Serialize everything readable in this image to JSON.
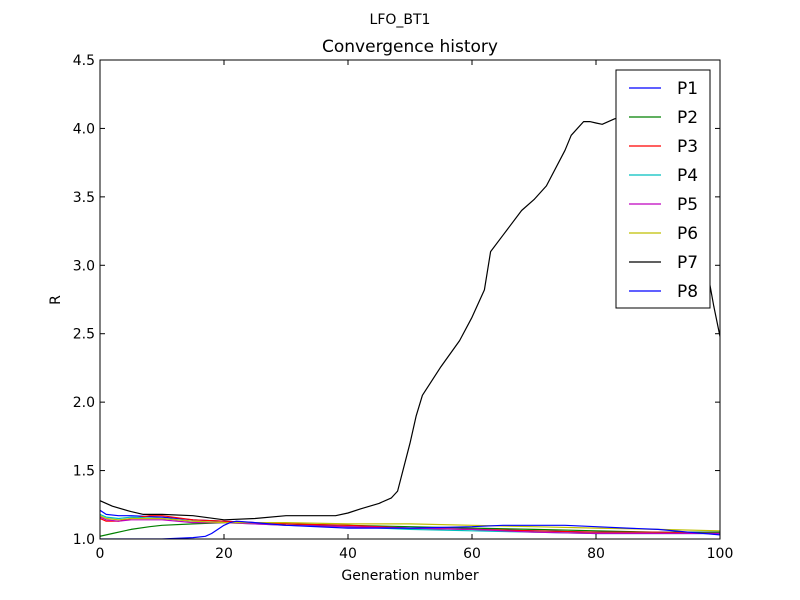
{
  "chart_data": {
    "type": "line",
    "suptitle": "LFO_BT1",
    "title": "Convergence history",
    "xlabel": "Generation number",
    "ylabel": "R",
    "xlim": [
      0,
      100
    ],
    "ylim": [
      1.0,
      4.5
    ],
    "xticks": [
      0,
      20,
      40,
      60,
      80,
      100
    ],
    "yticks": [
      1.0,
      1.5,
      2.0,
      2.5,
      3.0,
      3.5,
      4.0,
      4.5
    ],
    "xtick_labels": [
      "0",
      "20",
      "40",
      "60",
      "80",
      "100"
    ],
    "ytick_labels": [
      "1.0",
      "1.5",
      "2.0",
      "2.5",
      "3.0",
      "3.5",
      "4.0",
      "4.5"
    ],
    "grid": false,
    "legend_position": "top-right",
    "series": [
      {
        "name": "P1",
        "color": "#0000ff",
        "x": [
          0,
          1,
          3,
          5,
          10,
          15,
          20,
          25,
          30,
          40,
          50,
          60,
          70,
          80,
          90,
          100
        ],
        "y": [
          1.21,
          1.18,
          1.17,
          1.17,
          1.16,
          1.14,
          1.13,
          1.12,
          1.11,
          1.09,
          1.08,
          1.07,
          1.06,
          1.05,
          1.05,
          1.05
        ]
      },
      {
        "name": "P2",
        "color": "#008000",
        "x": [
          0,
          2,
          5,
          8,
          10,
          15,
          20,
          25,
          30,
          40,
          50,
          60,
          70,
          80,
          90,
          100
        ],
        "y": [
          1.02,
          1.04,
          1.07,
          1.09,
          1.1,
          1.11,
          1.12,
          1.12,
          1.11,
          1.1,
          1.09,
          1.08,
          1.07,
          1.06,
          1.05,
          1.05
        ]
      },
      {
        "name": "P3",
        "color": "#ff0000",
        "x": [
          0,
          1,
          3,
          5,
          8,
          10,
          15,
          20,
          25,
          30,
          40,
          50,
          60,
          70,
          80,
          90,
          100
        ],
        "y": [
          1.15,
          1.13,
          1.13,
          1.15,
          1.17,
          1.17,
          1.14,
          1.13,
          1.12,
          1.11,
          1.1,
          1.08,
          1.07,
          1.06,
          1.05,
          1.05,
          1.04
        ]
      },
      {
        "name": "P4",
        "color": "#00bfbf",
        "x": [
          0,
          1,
          3,
          5,
          10,
          15,
          20,
          25,
          30,
          40,
          50,
          60,
          70,
          80,
          90,
          100
        ],
        "y": [
          1.18,
          1.16,
          1.15,
          1.16,
          1.15,
          1.13,
          1.12,
          1.11,
          1.1,
          1.09,
          1.07,
          1.06,
          1.05,
          1.04,
          1.04,
          1.04
        ]
      },
      {
        "name": "P5",
        "color": "#bf00bf",
        "x": [
          0,
          1,
          3,
          5,
          10,
          15,
          20,
          25,
          30,
          40,
          50,
          60,
          70,
          80,
          90,
          100
        ],
        "y": [
          1.16,
          1.14,
          1.13,
          1.14,
          1.14,
          1.12,
          1.12,
          1.11,
          1.1,
          1.09,
          1.08,
          1.07,
          1.05,
          1.04,
          1.04,
          1.04
        ]
      },
      {
        "name": "P6",
        "color": "#bfbf00",
        "x": [
          0,
          1,
          3,
          5,
          10,
          15,
          20,
          25,
          30,
          40,
          50,
          60,
          70,
          80,
          90,
          100
        ],
        "y": [
          1.17,
          1.15,
          1.14,
          1.15,
          1.15,
          1.13,
          1.12,
          1.12,
          1.12,
          1.11,
          1.11,
          1.1,
          1.09,
          1.08,
          1.07,
          1.06
        ]
      },
      {
        "name": "P7",
        "color": "#000000",
        "x": [
          0,
          2,
          5,
          7,
          10,
          15,
          20,
          25,
          30,
          35,
          38,
          40,
          42,
          45,
          47,
          48,
          50,
          51,
          52,
          55,
          58,
          60,
          62,
          63,
          65,
          68,
          70,
          72,
          75,
          76,
          78,
          79,
          80,
          81,
          82,
          83,
          85,
          90,
          95,
          97,
          99,
          100
        ],
        "y": [
          1.28,
          1.24,
          1.2,
          1.18,
          1.18,
          1.17,
          1.14,
          1.15,
          1.17,
          1.17,
          1.17,
          1.19,
          1.22,
          1.26,
          1.3,
          1.35,
          1.7,
          1.9,
          2.05,
          2.26,
          2.45,
          2.62,
          2.82,
          3.1,
          3.22,
          3.4,
          3.48,
          3.58,
          3.84,
          3.95,
          4.05,
          4.05,
          4.04,
          4.03,
          4.05,
          4.07,
          4.09,
          4.1,
          4.05,
          3.2,
          2.7,
          2.48
        ]
      },
      {
        "name": "P8",
        "color": "#0000ff",
        "x": [
          0,
          5,
          10,
          15,
          17,
          18,
          19,
          20,
          21,
          22,
          25,
          30,
          40,
          50,
          60,
          65,
          70,
          75,
          80,
          85,
          90,
          95,
          100
        ],
        "y": [
          1.0,
          1.0,
          1.0,
          1.01,
          1.02,
          1.04,
          1.07,
          1.1,
          1.12,
          1.13,
          1.12,
          1.1,
          1.08,
          1.08,
          1.09,
          1.1,
          1.1,
          1.1,
          1.09,
          1.08,
          1.07,
          1.05,
          1.03
        ]
      }
    ]
  }
}
